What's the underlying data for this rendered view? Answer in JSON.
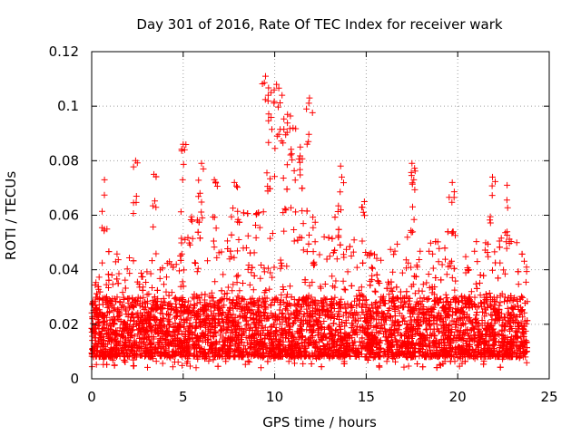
{
  "chart_data": {
    "type": "scatter",
    "title": "Day 301 of 2016, Rate Of TEC Index for receiver wark",
    "xlabel": "GPS time / hours",
    "ylabel": "ROTI / TECUs",
    "xlim": [
      0,
      25
    ],
    "ylim": [
      0,
      0.12
    ],
    "x_ticks": [
      0,
      5,
      10,
      15,
      20,
      25
    ],
    "x_tick_labels": [
      "0",
      "5",
      "10",
      "15",
      "20",
      "25"
    ],
    "y_ticks": [
      0,
      0.02,
      0.04,
      0.06,
      0.08,
      0.1,
      0.12
    ],
    "y_tick_labels": [
      "0",
      "0.02",
      "0.04",
      "0.06",
      "0.08",
      "0.1",
      "0.12"
    ],
    "grid": true,
    "marker": "+",
    "color": "#ff0000",
    "series": [
      {
        "name": "ROTI",
        "x_range": [
          0,
          23.8
        ],
        "typical_range": [
          0.008,
          0.03
        ],
        "notable_points": [
          {
            "x": 0.7,
            "y": 0.073
          },
          {
            "x": 2.4,
            "y": 0.08
          },
          {
            "x": 3.4,
            "y": 0.075
          },
          {
            "x": 5.0,
            "y": 0.086
          },
          {
            "x": 6.0,
            "y": 0.079
          },
          {
            "x": 6.7,
            "y": 0.073
          },
          {
            "x": 7.8,
            "y": 0.072
          },
          {
            "x": 9.5,
            "y": 0.111
          },
          {
            "x": 9.8,
            "y": 0.105
          },
          {
            "x": 10.1,
            "y": 0.108
          },
          {
            "x": 10.4,
            "y": 0.104
          },
          {
            "x": 10.7,
            "y": 0.097
          },
          {
            "x": 11.0,
            "y": 0.092
          },
          {
            "x": 11.4,
            "y": 0.085
          },
          {
            "x": 11.9,
            "y": 0.103
          },
          {
            "x": 13.6,
            "y": 0.078
          },
          {
            "x": 14.9,
            "y": 0.065
          },
          {
            "x": 17.5,
            "y": 0.079
          },
          {
            "x": 17.6,
            "y": 0.073
          },
          {
            "x": 19.7,
            "y": 0.072
          },
          {
            "x": 21.9,
            "y": 0.074
          },
          {
            "x": 22.7,
            "y": 0.071
          }
        ],
        "envelope": [
          [
            0,
            0.035
          ],
          [
            0.5,
            0.045
          ],
          [
            1,
            0.052
          ],
          [
            1.5,
            0.048
          ],
          [
            2,
            0.045
          ],
          [
            2.5,
            0.042
          ],
          [
            3,
            0.04
          ],
          [
            3.5,
            0.048
          ],
          [
            4,
            0.05
          ],
          [
            4.5,
            0.055
          ],
          [
            5,
            0.065
          ],
          [
            5.5,
            0.06
          ],
          [
            6,
            0.062
          ],
          [
            6.5,
            0.058
          ],
          [
            7,
            0.05
          ],
          [
            7.5,
            0.055
          ],
          [
            8,
            0.06
          ],
          [
            8.5,
            0.062
          ],
          [
            9,
            0.07
          ],
          [
            9.5,
            0.08
          ],
          [
            10,
            0.085
          ],
          [
            10.5,
            0.078
          ],
          [
            11,
            0.075
          ],
          [
            11.5,
            0.07
          ],
          [
            12,
            0.068
          ],
          [
            12.5,
            0.062
          ],
          [
            13,
            0.058
          ],
          [
            13.5,
            0.062
          ],
          [
            14,
            0.055
          ],
          [
            14.5,
            0.05
          ],
          [
            15,
            0.048
          ],
          [
            15.5,
            0.046
          ],
          [
            16,
            0.048
          ],
          [
            16.5,
            0.05
          ],
          [
            17,
            0.052
          ],
          [
            17.5,
            0.055
          ],
          [
            18,
            0.05
          ],
          [
            18.5,
            0.052
          ],
          [
            19,
            0.05
          ],
          [
            19.5,
            0.058
          ],
          [
            20,
            0.055
          ],
          [
            20.5,
            0.052
          ],
          [
            21,
            0.055
          ],
          [
            21.5,
            0.052
          ],
          [
            22,
            0.05
          ],
          [
            22.5,
            0.055
          ],
          [
            23,
            0.052
          ],
          [
            23.5,
            0.048
          ],
          [
            23.8,
            0.045
          ]
        ]
      }
    ]
  }
}
